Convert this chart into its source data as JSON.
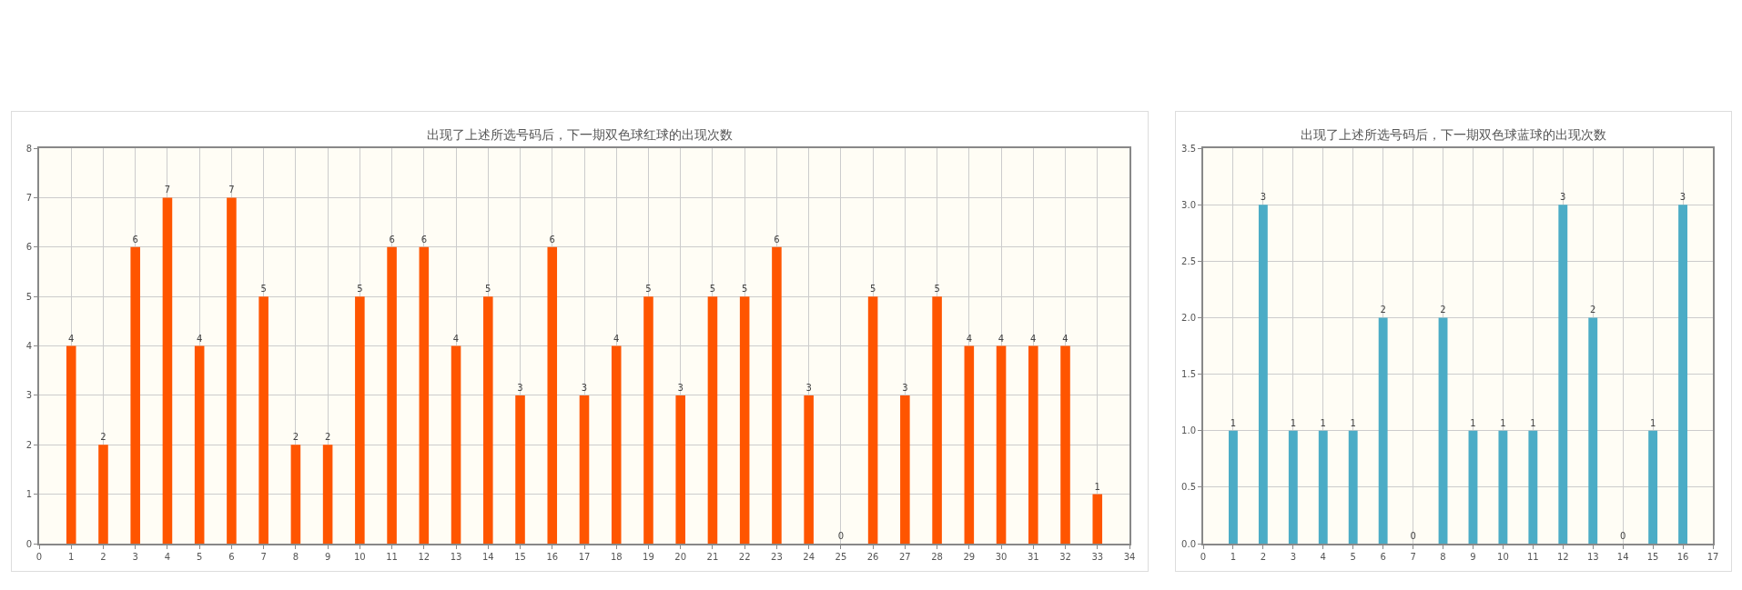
{
  "chart_data": [
    {
      "type": "bar",
      "title": "出现了上述所选号码后，下一期双色球红球的出现次数",
      "x": [
        1,
        2,
        3,
        4,
        5,
        6,
        7,
        8,
        9,
        10,
        11,
        12,
        13,
        14,
        15,
        16,
        17,
        18,
        19,
        20,
        21,
        22,
        23,
        24,
        25,
        26,
        27,
        28,
        29,
        30,
        31,
        32,
        33
      ],
      "values": [
        4,
        2,
        6,
        7,
        4,
        7,
        5,
        2,
        2,
        5,
        6,
        6,
        4,
        5,
        3,
        6,
        3,
        4,
        5,
        3,
        5,
        5,
        6,
        3,
        0,
        5,
        3,
        5,
        4,
        4,
        4,
        4,
        1
      ],
      "color": "#ff5500",
      "data_labels": true,
      "grid": true,
      "xlim": [
        0,
        34
      ],
      "xticks": [
        0,
        1,
        2,
        3,
        4,
        5,
        6,
        7,
        8,
        9,
        10,
        11,
        12,
        13,
        14,
        15,
        16,
        17,
        18,
        19,
        20,
        21,
        22,
        23,
        24,
        25,
        26,
        27,
        28,
        29,
        30,
        31,
        32,
        33,
        34
      ],
      "ylim": [
        0,
        8
      ],
      "yticks": [
        0,
        1,
        2,
        3,
        4,
        5,
        6,
        7,
        8
      ]
    },
    {
      "type": "bar",
      "title": "出现了上述所选号码后，下一期双色球蓝球的出现次数",
      "x": [
        1,
        2,
        3,
        4,
        5,
        6,
        7,
        8,
        9,
        10,
        11,
        12,
        13,
        14,
        15,
        16
      ],
      "values": [
        1,
        3,
        1,
        1,
        1,
        2,
        0,
        2,
        1,
        1,
        1,
        3,
        2,
        0,
        1,
        3
      ],
      "color": "#4bacc6",
      "data_labels": true,
      "grid": true,
      "xlim": [
        0,
        17
      ],
      "xticks": [
        0,
        1,
        2,
        3,
        4,
        5,
        6,
        7,
        8,
        9,
        10,
        11,
        12,
        13,
        14,
        15,
        16,
        17
      ],
      "ylim": [
        0,
        3.5
      ],
      "yticks": [
        {
          "value": 0,
          "label": "0.0"
        },
        {
          "value": 0.5,
          "label": "0.5"
        },
        {
          "value": 1,
          "label": "1.0"
        },
        {
          "value": 1.5,
          "label": "1.5"
        },
        {
          "value": 2,
          "label": "2.0"
        },
        {
          "value": 2.5,
          "label": "2.5"
        },
        {
          "value": 3,
          "label": "3.0"
        },
        {
          "value": 3.5,
          "label": "3.5"
        }
      ]
    }
  ]
}
